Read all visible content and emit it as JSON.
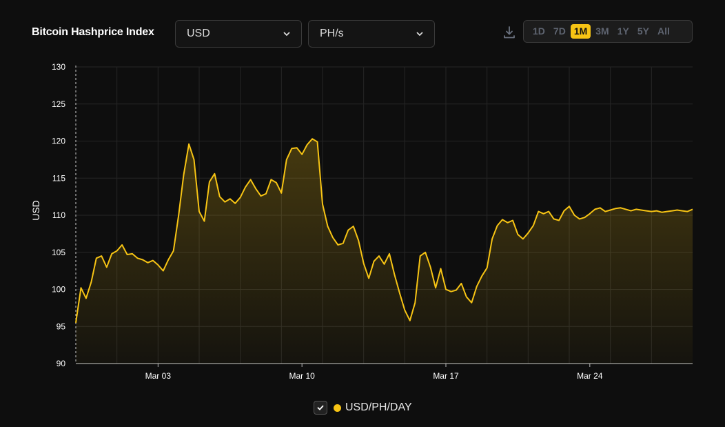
{
  "header": {
    "title": "Bitcoin Hashprice Index",
    "currency_select": "USD",
    "unit_select": "PH/s",
    "ranges": [
      "1D",
      "7D",
      "1M",
      "3M",
      "1Y",
      "5Y",
      "All"
    ],
    "active_range": "1M"
  },
  "icons": {
    "download": "download-icon",
    "chevron": "chevron-down-icon",
    "check": "check-icon"
  },
  "colors": {
    "background": "#0e0e0e",
    "line": "#f7c414",
    "grid": "#262626",
    "active_range": "#f7c414"
  },
  "legend": {
    "label": "USD/PH/DAY"
  },
  "chart_data": {
    "type": "area",
    "ylabel": "USD",
    "ylim": [
      90,
      130
    ],
    "yticks": [
      90,
      95,
      100,
      105,
      110,
      115,
      120,
      125,
      130
    ],
    "xlim": [
      "2024-02-28",
      "2024-03-29"
    ],
    "xticks": [
      {
        "date": "2024-03-03",
        "label": "Mar 03"
      },
      {
        "date": "2024-03-10",
        "label": "Mar 10"
      },
      {
        "date": "2024-03-17",
        "label": "Mar 17"
      },
      {
        "date": "2024-03-24",
        "label": "Mar 24"
      }
    ],
    "grid": true,
    "series": [
      {
        "name": "USD/PH/DAY",
        "x": [
          "2024-02-28T00:00",
          "2024-02-28T06:00",
          "2024-02-28T12:00",
          "2024-02-28T18:00",
          "2024-02-29T00:00",
          "2024-02-29T06:00",
          "2024-02-29T12:00",
          "2024-02-29T18:00",
          "2024-03-01T00:00",
          "2024-03-01T06:00",
          "2024-03-01T12:00",
          "2024-03-01T18:00",
          "2024-03-02T00:00",
          "2024-03-02T06:00",
          "2024-03-02T12:00",
          "2024-03-02T18:00",
          "2024-03-03T00:00",
          "2024-03-03T06:00",
          "2024-03-03T12:00",
          "2024-03-03T18:00",
          "2024-03-04T00:00",
          "2024-03-04T06:00",
          "2024-03-04T12:00",
          "2024-03-04T18:00",
          "2024-03-05T00:00",
          "2024-03-05T06:00",
          "2024-03-05T12:00",
          "2024-03-05T18:00",
          "2024-03-06T00:00",
          "2024-03-06T06:00",
          "2024-03-06T12:00",
          "2024-03-06T18:00",
          "2024-03-07T00:00",
          "2024-03-07T06:00",
          "2024-03-07T12:00",
          "2024-03-07T18:00",
          "2024-03-08T00:00",
          "2024-03-08T06:00",
          "2024-03-08T12:00",
          "2024-03-08T18:00",
          "2024-03-09T00:00",
          "2024-03-09T06:00",
          "2024-03-09T12:00",
          "2024-03-09T18:00",
          "2024-03-10T00:00",
          "2024-03-10T06:00",
          "2024-03-10T12:00",
          "2024-03-10T18:00",
          "2024-03-11T00:00",
          "2024-03-11T06:00",
          "2024-03-11T12:00",
          "2024-03-11T18:00",
          "2024-03-12T00:00",
          "2024-03-12T06:00",
          "2024-03-12T12:00",
          "2024-03-12T18:00",
          "2024-03-13T00:00",
          "2024-03-13T06:00",
          "2024-03-13T12:00",
          "2024-03-13T18:00",
          "2024-03-14T00:00",
          "2024-03-14T06:00",
          "2024-03-14T12:00",
          "2024-03-14T18:00",
          "2024-03-15T00:00",
          "2024-03-15T06:00",
          "2024-03-15T12:00",
          "2024-03-15T18:00",
          "2024-03-16T00:00",
          "2024-03-16T06:00",
          "2024-03-16T12:00",
          "2024-03-16T18:00",
          "2024-03-17T00:00",
          "2024-03-17T06:00",
          "2024-03-17T12:00",
          "2024-03-17T18:00",
          "2024-03-18T00:00",
          "2024-03-18T06:00",
          "2024-03-18T12:00",
          "2024-03-18T18:00",
          "2024-03-19T00:00",
          "2024-03-19T06:00",
          "2024-03-19T12:00",
          "2024-03-19T18:00",
          "2024-03-20T00:00",
          "2024-03-20T06:00",
          "2024-03-20T12:00",
          "2024-03-20T18:00",
          "2024-03-21T00:00",
          "2024-03-21T06:00",
          "2024-03-21T12:00",
          "2024-03-21T18:00",
          "2024-03-22T00:00",
          "2024-03-22T06:00",
          "2024-03-22T12:00",
          "2024-03-22T18:00",
          "2024-03-23T00:00",
          "2024-03-23T06:00",
          "2024-03-23T12:00",
          "2024-03-23T18:00",
          "2024-03-24T00:00",
          "2024-03-24T06:00",
          "2024-03-24T12:00",
          "2024-03-24T18:00",
          "2024-03-25T00:00",
          "2024-03-25T06:00",
          "2024-03-25T12:00",
          "2024-03-25T18:00",
          "2024-03-26T00:00",
          "2024-03-26T06:00",
          "2024-03-26T12:00",
          "2024-03-26T18:00",
          "2024-03-27T00:00",
          "2024-03-27T06:00",
          "2024-03-27T12:00",
          "2024-03-27T18:00",
          "2024-03-28T00:00",
          "2024-03-28T06:00",
          "2024-03-28T12:00",
          "2024-03-28T18:00",
          "2024-03-29T00:00"
        ],
        "values": [
          95.5,
          100.2,
          98.8,
          101.0,
          104.2,
          104.5,
          103.0,
          104.8,
          105.2,
          106.0,
          104.7,
          104.8,
          104.2,
          104.0,
          103.6,
          103.9,
          103.3,
          102.5,
          104.0,
          105.2,
          110.0,
          115.5,
          119.6,
          117.5,
          110.5,
          109.2,
          114.5,
          115.6,
          112.5,
          111.8,
          112.2,
          111.6,
          112.4,
          113.8,
          114.8,
          113.6,
          112.6,
          112.9,
          114.8,
          114.4,
          113.0,
          117.5,
          119.0,
          119.1,
          118.2,
          119.5,
          120.3,
          119.9,
          111.5,
          108.5,
          107.0,
          106.0,
          106.2,
          108.0,
          108.5,
          106.6,
          103.5,
          101.5,
          103.8,
          104.5,
          103.4,
          104.8,
          102.0,
          99.5,
          97.2,
          95.8,
          98.2,
          104.5,
          105.0,
          103.0,
          100.2,
          102.8,
          100.0,
          99.7,
          99.9,
          100.8,
          99.0,
          98.2,
          100.4,
          101.8,
          102.9,
          106.8,
          108.6,
          109.4,
          109.0,
          109.3,
          107.4,
          106.8,
          107.6,
          108.6,
          110.5,
          110.2,
          110.5,
          109.5,
          109.3,
          110.6,
          111.2,
          110.0,
          109.5,
          109.7,
          110.2,
          110.8,
          111.0,
          110.5,
          110.7,
          110.9,
          111.0,
          110.8,
          110.6,
          110.8,
          110.7,
          110.6,
          110.5,
          110.6,
          110.4,
          110.5,
          110.6,
          110.7,
          110.6,
          110.5,
          110.8
        ]
      }
    ]
  }
}
